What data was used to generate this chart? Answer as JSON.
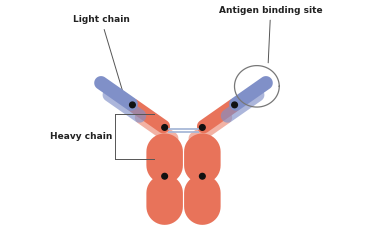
{
  "bg_color": "#ffffff",
  "heavy_color": "#e8735a",
  "light_color": "#8090c8",
  "heavy_light": "#e8a090",
  "connector_color": "#111111",
  "bridge_color": "#a8b8d8",
  "figsize": [
    3.67,
    2.37
  ],
  "dpi": 100,
  "label_light": "Light chain",
  "label_heavy": "Heavy chain",
  "label_antigen": "Antigen binding site",
  "text_color": "#222222",
  "text_fontsize": 6.5,
  "antigen_circle_color": "#777777"
}
